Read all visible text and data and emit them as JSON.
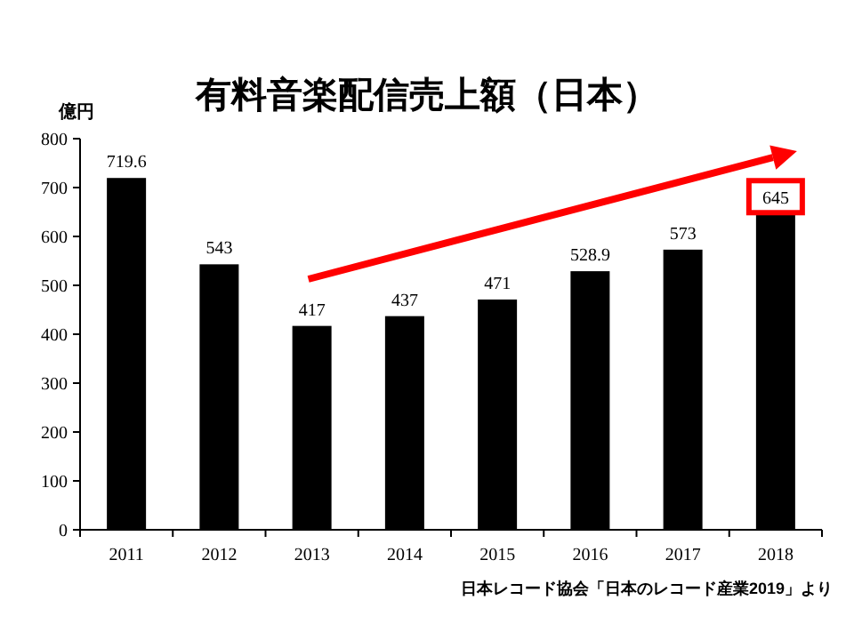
{
  "chart_data": {
    "type": "bar",
    "title": "有料音楽配信売上額（日本）",
    "ylabel": "億円",
    "categories": [
      "2011",
      "2012",
      "2013",
      "2014",
      "2015",
      "2016",
      "2017",
      "2018"
    ],
    "values": [
      719.6,
      543,
      417,
      437,
      471,
      528.9,
      573,
      645
    ],
    "color": "#000000",
    "ylim": [
      0,
      800
    ],
    "yticks": [
      0,
      100,
      200,
      300,
      400,
      500,
      600,
      700,
      800
    ],
    "data_labels": true,
    "annotations": [
      "日本レコード協会「日本のレコード産業2019」より"
    ]
  }
}
